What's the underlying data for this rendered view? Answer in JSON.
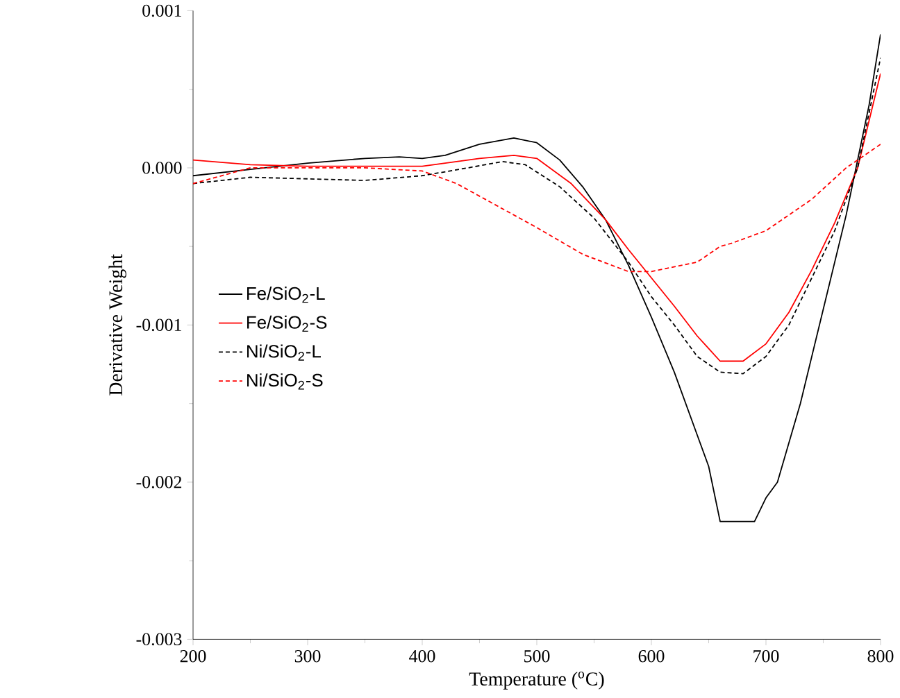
{
  "chart_data": {
    "type": "line",
    "xlabel": "Temperature ($^{o}$C)",
    "ylabel": "Derivative Weight",
    "xlim": [
      200,
      800
    ],
    "ylim": [
      -0.003,
      0.001
    ],
    "xticks": [
      200,
      300,
      400,
      500,
      600,
      700,
      800
    ],
    "yticks": [
      -0.003,
      -0.002,
      -0.001,
      {
        "value": 0,
        "label": "0.000"
      },
      0.001
    ],
    "grid": false,
    "legend": "left",
    "marker": "none",
    "series": [
      {
        "name": "Fe/SiO$_{2}$-L",
        "color": "#000000",
        "line_style": "solid",
        "x": [
          200,
          250,
          300,
          350,
          380,
          400,
          420,
          450,
          480,
          500,
          520,
          540,
          560,
          580,
          600,
          620,
          640,
          650,
          660,
          690,
          700,
          710,
          730,
          750,
          770,
          790,
          800
        ],
        "values": [
          -5e-05,
          -1e-05,
          3e-05,
          6e-05,
          7e-05,
          6e-05,
          8e-05,
          0.00015,
          0.00019,
          0.00016,
          5e-05,
          -0.00012,
          -0.00033,
          -0.00062,
          -0.00095,
          -0.0013,
          -0.0017,
          -0.0019,
          -0.00225,
          -0.00225,
          -0.0021,
          -0.002,
          -0.0015,
          -0.0009,
          -0.0003,
          0.0004,
          0.00085
        ]
      },
      {
        "name": "Fe/SiO$_{2}$-S",
        "color": "#ff0000",
        "line_style": "solid",
        "x": [
          200,
          250,
          300,
          400,
          450,
          480,
          500,
          530,
          560,
          580,
          600,
          620,
          640,
          660,
          680,
          700,
          720,
          740,
          760,
          780,
          800
        ],
        "values": [
          5e-05,
          2e-05,
          1e-05,
          1e-05,
          6e-05,
          8e-05,
          6e-05,
          -0.0001,
          -0.00033,
          -0.00052,
          -0.0007,
          -0.00088,
          -0.00107,
          -0.00123,
          -0.00123,
          -0.00112,
          -0.00092,
          -0.00065,
          -0.00035,
          0.0,
          0.0006
        ]
      },
      {
        "name": "Ni/SiO$_{2}$-L",
        "color": "#000000",
        "line_style": "dashed",
        "x": [
          200,
          250,
          300,
          350,
          400,
          440,
          470,
          490,
          520,
          550,
          580,
          600,
          620,
          640,
          660,
          680,
          700,
          720,
          740,
          760,
          780,
          800
        ],
        "values": [
          -0.0001,
          -6e-05,
          -7e-05,
          -8e-05,
          -5e-05,
          0.0,
          4e-05,
          2e-05,
          -0.00012,
          -0.00032,
          -0.0006,
          -0.00082,
          -0.001,
          -0.0012,
          -0.0013,
          -0.00131,
          -0.0012,
          -0.001,
          -0.0007,
          -0.0004,
          0.0,
          0.0007
        ]
      },
      {
        "name": "Ni/SiO$_{2}$-S",
        "color": "#ff0000",
        "line_style": "dashed",
        "x": [
          200,
          250,
          300,
          350,
          400,
          430,
          460,
          500,
          540,
          580,
          600,
          640,
          660,
          670,
          700,
          740,
          770,
          800
        ],
        "values": [
          -0.0001,
          0.0,
          0.0,
          0.0,
          -2e-05,
          -0.0001,
          -0.00022,
          -0.00038,
          -0.00055,
          -0.00066,
          -0.00066,
          -0.0006,
          -0.0005,
          -0.00048,
          -0.0004,
          -0.0002,
          0.0,
          0.00015
        ]
      }
    ]
  }
}
